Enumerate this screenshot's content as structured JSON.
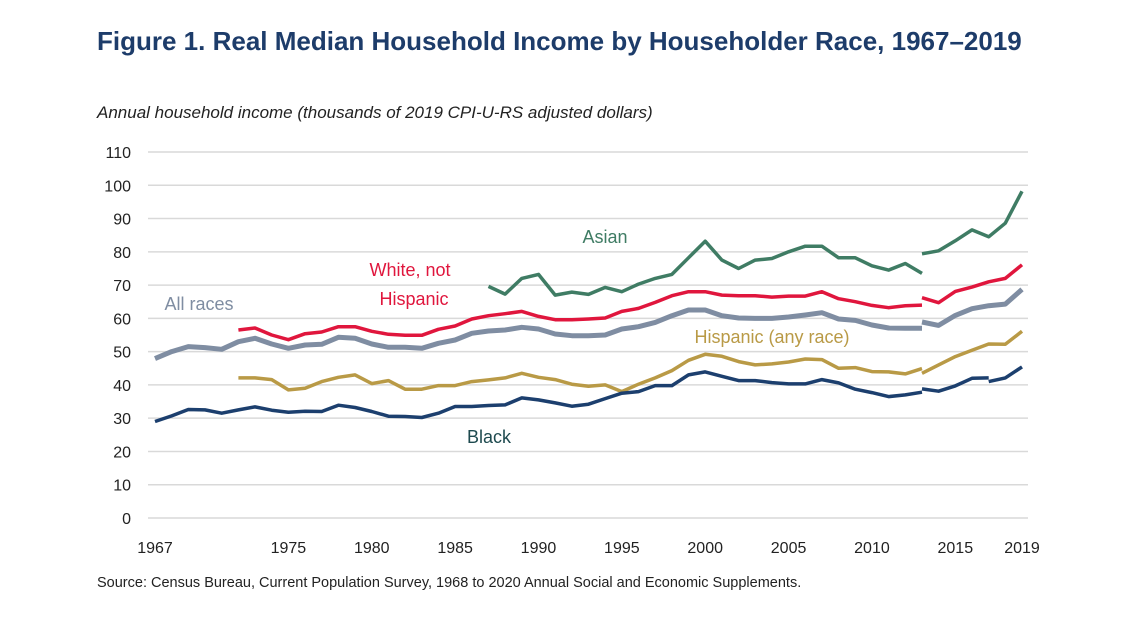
{
  "title": "Figure 1. Real Median Household Income by Householder Race, 1967–2019",
  "subtitle": "Annual household income (thousands of 2019 CPI-U-RS adjusted dollars)",
  "source": "Source: Census Bureau, Current Population Survey, 1968 to 2020 Annual Social and Economic Supplements.",
  "chart_data": {
    "type": "line",
    "title": "Figure 1. Real Median Household Income by Householder Race, 1967–2019",
    "ylabel": "Annual household income (thousands of 2019 CPI-U-RS adjusted dollars)",
    "xlabel": "",
    "ylim": [
      0,
      110
    ],
    "xlim": [
      1967,
      2019
    ],
    "yticks": [
      0,
      10,
      20,
      30,
      40,
      50,
      60,
      70,
      80,
      90,
      100,
      110
    ],
    "xticks": [
      1967,
      1975,
      1980,
      1985,
      1990,
      1995,
      2000,
      2005,
      2010,
      2015,
      2019
    ],
    "grid": true,
    "series": [
      {
        "name": "Asian",
        "color": "#3f7c64",
        "segments": [
          {
            "start": 1987,
            "values": [
              69.6,
              67.3,
              72.0,
              73.2,
              67.0,
              67.9,
              67.2,
              69.3,
              68.0,
              70.3,
              72.0,
              73.2,
              78.2,
              83.2,
              77.5,
              75.0,
              77.5,
              78.0,
              80.0,
              81.7,
              81.7,
              78.2,
              78.2,
              75.8,
              74.5,
              76.5,
              73.5
            ]
          },
          {
            "start": 2013,
            "values": [
              79.4,
              80.3,
              83.3,
              86.6,
              84.5,
              88.6,
              98.2
            ]
          }
        ]
      },
      {
        "name": "White, not Hispanic",
        "color": "#e0163d",
        "segments": [
          {
            "start": 1972,
            "values": [
              56.5,
              57.1,
              55.0,
              53.6,
              55.4,
              55.9,
              57.5,
              57.5,
              56.1,
              55.2,
              54.9,
              54.9,
              56.7,
              57.7,
              59.8,
              60.8,
              61.4,
              62.1,
              60.6,
              59.6,
              59.6,
              59.8,
              60.1,
              62.1,
              63.0,
              64.8,
              66.8,
              68.0,
              68.0,
              67.0,
              66.8,
              66.8,
              66.4,
              66.7,
              66.7,
              68.0,
              65.9,
              65.0,
              63.9,
              63.2,
              63.8,
              64.0
            ]
          },
          {
            "start": 2013,
            "values": [
              66.2,
              64.7,
              68.1,
              69.4,
              71.0,
              72.0,
              76.1
            ]
          }
        ]
      },
      {
        "name": "All races",
        "color": "#7f8da2",
        "segments": [
          {
            "start": 1967,
            "values": [
              47.9,
              50.0,
              51.5,
              51.2,
              50.7,
              53.0,
              54.0,
              52.3,
              51.0,
              52.0,
              52.2,
              54.3,
              54.0,
              52.3,
              51.3,
              51.3,
              51.0,
              52.5,
              53.5,
              55.5,
              56.2,
              56.5,
              57.3,
              56.8,
              55.3,
              54.8,
              54.8,
              55.0,
              56.8,
              57.5,
              58.8,
              60.8,
              62.5,
              62.5,
              60.8,
              60.1,
              60.0,
              60.0,
              60.4,
              61.0,
              61.7,
              59.8,
              59.4,
              58.0,
              57.1,
              57.0,
              57.0
            ]
          },
          {
            "start": 2013,
            "values": [
              58.9,
              57.9,
              60.9,
              62.9,
              63.8,
              64.3,
              68.7
            ]
          }
        ]
      },
      {
        "name": "Hispanic (any race)",
        "color": "#b99a46",
        "segments": [
          {
            "start": 1972,
            "values": [
              42.1,
              42.1,
              41.6,
              38.5,
              39.0,
              41.0,
              42.3,
              43.0,
              40.4,
              41.3,
              38.7,
              38.7,
              39.8,
              39.8,
              41.0,
              41.5,
              42.1,
              43.5,
              42.3,
              41.6,
              40.2,
              39.6,
              40.0,
              38.0,
              40.2,
              42.1,
              44.3,
              47.4,
              49.2,
              48.6,
              47.0,
              46.0,
              46.3,
              46.9,
              47.8,
              47.6,
              45.0,
              45.2,
              44.0,
              43.9,
              43.3,
              44.9
            ]
          },
          {
            "start": 2013,
            "values": [
              43.5,
              46.0,
              48.5,
              50.4,
              52.3,
              52.2,
              56.1
            ]
          }
        ]
      },
      {
        "name": "Black",
        "color": "#1c3f6e",
        "segments": [
          {
            "start": 1967,
            "values": [
              29.0,
              30.7,
              32.6,
              32.5,
              31.5,
              32.5,
              33.4,
              32.4,
              31.8,
              32.1,
              32.0,
              33.9,
              33.2,
              32.0,
              30.6,
              30.5,
              30.2,
              31.5,
              33.5,
              33.5,
              33.8,
              34.0,
              36.1,
              35.5,
              34.6,
              33.6,
              34.2,
              35.9,
              37.5,
              38.0,
              39.8,
              39.8,
              43.0,
              43.9,
              42.6,
              41.3,
              41.3,
              40.7,
              40.3,
              40.3,
              41.6,
              40.6,
              38.7,
              37.7,
              36.5,
              37.0,
              37.8
            ]
          },
          {
            "start": 2013,
            "values": [
              38.8,
              38.1,
              39.7,
              42.0,
              42.1
            ]
          },
          {
            "start": 2017,
            "values": [
              41.0,
              42.1,
              45.4
            ]
          }
        ]
      }
    ],
    "labels": [
      {
        "text": "Asian",
        "series": "Asian",
        "color": "#3f7c64"
      },
      {
        "text": "White, not",
        "series": "White, not Hispanic",
        "color": "#e0163d"
      },
      {
        "text": "Hispanic",
        "series": "White, not Hispanic",
        "color": "#e0163d"
      },
      {
        "text": "All races",
        "series": "All races",
        "color": "#7f8da2"
      },
      {
        "text": "Hispanic (any race)",
        "series": "Hispanic (any race)",
        "color": "#b99a46"
      },
      {
        "text": "Black",
        "series": "Black",
        "color": "#1e4a4f"
      }
    ]
  }
}
